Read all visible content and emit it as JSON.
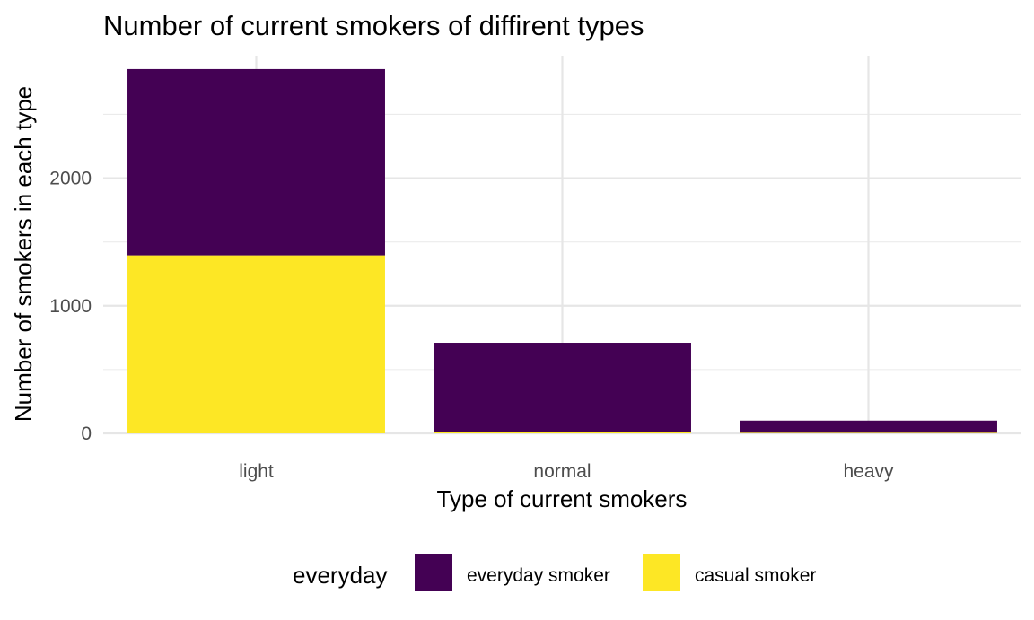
{
  "chart_data": {
    "type": "bar",
    "stacked": true,
    "title": "Number of current smokers of diffirent types",
    "xlabel": "Type of current smokers",
    "ylabel": "Number of smokers in each type",
    "categories": [
      "light",
      "normal",
      "heavy"
    ],
    "series": [
      {
        "name": "everyday smoker",
        "color": "#440154",
        "values": [
          1460,
          700,
          95
        ]
      },
      {
        "name": "casual smoker",
        "color": "#FDE725",
        "values": [
          1395,
          10,
          5
        ]
      }
    ],
    "yticks": [
      0,
      1000,
      2000
    ],
    "ylim": [
      0,
      2960
    ],
    "grid": true,
    "legend": {
      "title": "everyday",
      "position": "bottom"
    }
  }
}
